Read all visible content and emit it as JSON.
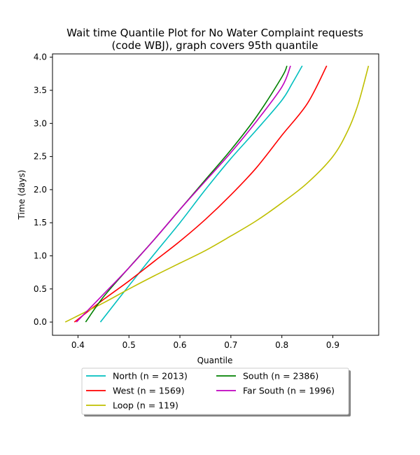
{
  "chart_data": {
    "type": "line",
    "title_lines": [
      "Wait time Quantile Plot for No Water Complaint  requests",
      "(code WBJ), graph covers 95th quantile"
    ],
    "xlabel": "Quantile",
    "ylabel": "Time (days)",
    "xlim": [
      0.35,
      0.99
    ],
    "ylim": [
      -0.2,
      4.05
    ],
    "xticks": [
      0.4,
      0.5,
      0.6,
      0.7,
      0.8,
      0.9
    ],
    "xtick_labels": [
      "0.4",
      "0.5",
      "0.6",
      "0.7",
      "0.8",
      "0.9"
    ],
    "yticks": [
      0.0,
      0.5,
      1.0,
      1.5,
      2.0,
      2.5,
      3.0,
      3.5,
      4.0
    ],
    "ytick_labels": [
      "0.0",
      "0.5",
      "1.0",
      "1.5",
      "2.0",
      "2.5",
      "3.0",
      "3.5",
      "4.0"
    ],
    "grid": false,
    "legend_position": "below",
    "series": [
      {
        "name": "North (n = 2013)",
        "color": "#00bfbf",
        "x": [
          0.444,
          0.5,
          0.55,
          0.6,
          0.65,
          0.7,
          0.75,
          0.8,
          0.82,
          0.84
        ],
        "y": [
          0.0,
          0.55,
          1.03,
          1.5,
          2.0,
          2.47,
          2.9,
          3.35,
          3.6,
          3.87
        ]
      },
      {
        "name": "West (n = 1569)",
        "color": "#ff0000",
        "x": [
          0.393,
          0.45,
          0.5,
          0.55,
          0.6,
          0.65,
          0.7,
          0.75,
          0.8,
          0.85,
          0.888
        ],
        "y": [
          0.0,
          0.34,
          0.62,
          0.92,
          1.22,
          1.55,
          1.92,
          2.33,
          2.82,
          3.3,
          3.87
        ]
      },
      {
        "name": "Loop (n = 119)",
        "color": "#bfbf00",
        "x": [
          0.375,
          0.45,
          0.5,
          0.55,
          0.6,
          0.65,
          0.7,
          0.75,
          0.8,
          0.85,
          0.9,
          0.93,
          0.95,
          0.97
        ],
        "y": [
          0.0,
          0.29,
          0.5,
          0.7,
          0.89,
          1.08,
          1.3,
          1.53,
          1.8,
          2.1,
          2.5,
          2.9,
          3.3,
          3.87
        ]
      },
      {
        "name": "South (n = 2386)",
        "color": "#008000",
        "x": [
          0.415,
          0.45,
          0.5,
          0.55,
          0.6,
          0.65,
          0.7,
          0.75,
          0.8,
          0.81
        ],
        "y": [
          0.0,
          0.38,
          0.82,
          1.25,
          1.7,
          2.15,
          2.6,
          3.1,
          3.7,
          3.87
        ]
      },
      {
        "name": "Far South (n = 1996)",
        "color": "#bf00bf",
        "x": [
          0.397,
          0.45,
          0.5,
          0.55,
          0.6,
          0.65,
          0.7,
          0.75,
          0.8,
          0.817
        ],
        "y": [
          0.0,
          0.42,
          0.82,
          1.25,
          1.7,
          2.13,
          2.56,
          3.03,
          3.55,
          3.87
        ]
      }
    ]
  }
}
